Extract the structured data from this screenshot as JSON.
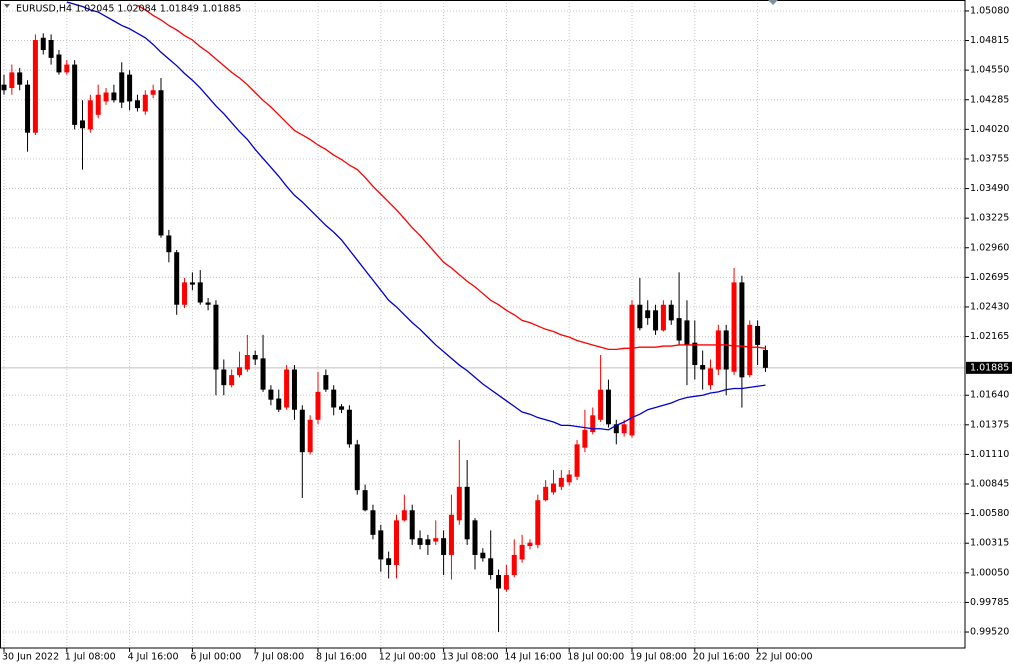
{
  "chart_data": {
    "type": "candlestick",
    "title": "EURUSD,H4  1.02045 1.02084 1.01849 1.01885",
    "categories": [
      "30 Jun 2022",
      null,
      null,
      null,
      null,
      null,
      null,
      null,
      "1 Jul 08:00",
      null,
      null,
      null,
      null,
      null,
      null,
      null,
      "4 Jul 16:00",
      null,
      null,
      null,
      null,
      null,
      null,
      null,
      "6 Jul 00:00",
      null,
      null,
      null,
      null,
      null,
      null,
      null,
      "7 Jul 08:00",
      null,
      null,
      null,
      null,
      null,
      null,
      null,
      "8 Jul 16:00",
      null,
      null,
      null,
      null,
      null,
      null,
      null,
      "12 Jul 00:00",
      null,
      null,
      null,
      null,
      null,
      null,
      null,
      "13 Jul 08:00",
      null,
      null,
      null,
      null,
      null,
      null,
      null,
      "14 Jul 16:00",
      null,
      null,
      null,
      null,
      null,
      null,
      null,
      "18 Jul 00:00",
      null,
      null,
      null,
      null,
      null,
      null,
      null,
      "19 Jul 08:00",
      null,
      null,
      null,
      null,
      null,
      null,
      null,
      "20 Jul 16:00",
      null,
      null,
      null,
      null,
      null,
      null,
      null,
      "22 Jul 00:00",
      null
    ],
    "open": [
      1.0442,
      1.0439,
      1.0453,
      1.0442,
      1.0399,
      1.0484,
      1.0482,
      1.0469,
      1.0453,
      1.046,
      1.041,
      1.0402,
      1.0415,
      1.0427,
      1.0435,
      1.0453,
      1.0451,
      1.0428,
      1.0418,
      1.0433,
      1.0437,
      1.0307,
      1.0292,
      1.0245,
      1.0265,
      1.0265,
      1.0247,
      1.0245,
      1.0187,
      1.0173,
      1.0182,
      1.0187,
      1.02,
      1.0197,
      1.0169,
      1.0161,
      1.0153,
      1.0187,
      1.0151,
      1.0113,
      1.0142,
      1.0182,
      1.0169,
      1.0154,
      1.0151,
      1.012,
      1.0079,
      1.0061,
      1.0043,
      1.0018,
      1.0012,
      1.0052,
      1.0061,
      1.0036,
      1.0035,
      1.0033,
      1.0036,
      1.0021,
      1.0052,
      1.0082,
      1.0052,
      1.0023,
      1.0018,
      1.0003,
      0.999,
      1.0003,
      1.0017,
      1.0029,
      1.003,
      1.007,
      1.0077,
      1.0082,
      1.0086,
      1.0091,
      1.0117,
      1.0131,
      1.0142,
      1.0169,
      1.0138,
      1.013,
      1.0128,
      1.0245,
      1.024,
      1.024,
      1.0222,
      1.0245,
      1.0233,
      1.0231,
      1.0211,
      1.0191,
      1.0173,
      1.0187,
      1.0222,
      1.0185,
      1.0265,
      1.0182,
      1.0226,
      1.02045
    ],
    "high": [
      1.0451,
      1.046,
      1.0457,
      1.0446,
      1.0487,
      1.0488,
      1.0487,
      1.0473,
      1.0464,
      1.0464,
      1.0428,
      1.0433,
      1.0442,
      1.0439,
      1.0442,
      1.0462,
      1.0455,
      1.0433,
      1.0437,
      1.0442,
      1.0448,
      1.0312,
      1.0294,
      1.0269,
      1.0274,
      1.0276,
      1.0251,
      1.0249,
      1.0196,
      1.0187,
      1.0203,
      1.0218,
      1.0204,
      1.0218,
      1.0173,
      1.0169,
      1.0191,
      1.0191,
      1.0155,
      1.0146,
      1.0185,
      1.0187,
      1.0173,
      1.0156,
      1.0155,
      1.0124,
      1.0084,
      1.0066,
      1.0048,
      1.0024,
      1.0057,
      1.0075,
      1.0066,
      1.0043,
      1.0039,
      1.0052,
      1.0043,
      1.0075,
      1.0124,
      1.0106,
      1.0054,
      1.0027,
      1.0043,
      1.0008,
      1.0012,
      1.0035,
      1.0039,
      1.0035,
      1.0075,
      1.0088,
      1.0097,
      1.0097,
      1.0097,
      1.0124,
      1.0151,
      1.0153,
      1.02,
      1.0178,
      1.0142,
      1.0142,
      1.0249,
      1.0269,
      1.0249,
      1.0245,
      1.0249,
      1.0249,
      1.0274,
      1.0249,
      1.0231,
      1.0204,
      1.0196,
      1.0227,
      1.0227,
      1.0278,
      1.0271,
      1.0231,
      1.0231,
      1.02084
    ],
    "low": [
      1.0433,
      1.0433,
      1.0437,
      1.0382,
      1.0397,
      1.0469,
      1.046,
      1.0451,
      1.0451,
      1.0402,
      1.0366,
      1.0399,
      1.0412,
      1.0424,
      1.0426,
      1.0421,
      1.0419,
      1.0418,
      1.0415,
      1.043,
      1.0305,
      1.0283,
      1.0236,
      1.0242,
      1.0258,
      1.0245,
      1.024,
      1.0164,
      1.0164,
      1.0171,
      1.018,
      1.0185,
      1.0191,
      1.0167,
      1.0155,
      1.0149,
      1.0151,
      1.0142,
      1.0072,
      1.0111,
      1.0138,
      1.0167,
      1.0146,
      1.0148,
      1.0117,
      1.0075,
      1.006,
      1.0035,
      1.0006,
      1.0,
      1.0,
      1.0051,
      1.003,
      1.0026,
      1.0021,
      1.003,
      1.0003,
      0.9999,
      1.0048,
      1.003,
      1.0008,
      1.0015,
      0.9999,
      0.9952,
      0.9988,
      1.0001,
      1.0014,
      1.0026,
      1.0027,
      1.0069,
      1.0075,
      1.0079,
      1.0083,
      1.0088,
      1.0113,
      1.0129,
      1.014,
      1.0135,
      1.012,
      1.0127,
      1.0126,
      1.0222,
      1.0227,
      1.0218,
      1.0221,
      1.0227,
      1.0209,
      1.0173,
      1.0178,
      1.0169,
      1.0169,
      1.0182,
      1.0164,
      1.0182,
      1.0153,
      1.018,
      1.0191,
      1.01849
    ],
    "close": [
      1.0437,
      1.0453,
      1.0442,
      1.0399,
      1.0482,
      1.0473,
      1.0466,
      1.0453,
      1.046,
      1.0406,
      1.0403,
      1.0428,
      1.0433,
      1.0435,
      1.0428,
      1.0426,
      1.0427,
      1.0421,
      1.0433,
      1.0437,
      1.0307,
      1.0292,
      1.0245,
      1.0265,
      1.0263,
      1.0247,
      1.0245,
      1.0187,
      1.0173,
      1.0182,
      1.0189,
      1.02,
      1.0196,
      1.0169,
      1.016,
      1.0151,
      1.0187,
      1.0151,
      1.0113,
      1.0142,
      1.0167,
      1.0169,
      1.0153,
      1.0151,
      1.012,
      1.0079,
      1.0061,
      1.0039,
      1.0017,
      1.0012,
      1.0052,
      1.0061,
      1.0035,
      1.003,
      1.003,
      1.0036,
      1.0021,
      1.0057,
      1.0082,
      1.0035,
      1.0021,
      1.0018,
      1.0003,
      0.9991,
      1.0003,
      1.0021,
      1.003,
      1.0032,
      1.007,
      1.0082,
      1.0085,
      1.009,
      1.0093,
      1.012,
      1.0133,
      1.0146,
      1.0169,
      1.0138,
      1.013,
      1.0138,
      1.0245,
      1.0224,
      1.0233,
      1.0222,
      1.0245,
      1.0231,
      1.0213,
      1.0209,
      1.0191,
      1.0187,
      1.0188,
      1.0222,
      1.0187,
      1.0265,
      1.018,
      1.0227,
      1.0209,
      1.01885
    ],
    "up_color": "#ff0000",
    "down_color": "#000000",
    "indicators": [
      {
        "color": "#ff0000",
        "values": [
          null,
          null,
          null,
          null,
          null,
          null,
          null,
          null,
          null,
          null,
          null,
          null,
          null,
          null,
          null,
          null,
          null,
          1.0513,
          1.0509,
          1.0504,
          1.05,
          1.0495,
          1.0491,
          1.0486,
          1.0482,
          1.0476,
          1.0471,
          1.0465,
          1.0459,
          1.0453,
          1.0448,
          1.0442,
          1.0435,
          1.0428,
          1.0422,
          1.0415,
          1.0408,
          1.0401,
          1.0397,
          1.0393,
          1.0388,
          1.0384,
          1.0379,
          1.0375,
          1.037,
          1.0366,
          1.0359,
          1.0351,
          1.0344,
          1.0337,
          1.033,
          1.0322,
          1.0314,
          1.0307,
          1.0299,
          1.0291,
          1.0283,
          1.0278,
          1.0272,
          1.0266,
          1.0261,
          1.0255,
          1.0249,
          1.0245,
          1.024,
          1.0236,
          1.0231,
          1.0229,
          1.0226,
          1.0223,
          1.0221,
          1.0218,
          1.0216,
          1.0213,
          1.0211,
          1.0209,
          1.0207,
          1.0205,
          1.0205,
          1.0206,
          1.0206,
          1.0207,
          1.0207,
          1.0207,
          1.0208,
          1.0208,
          1.0209,
          1.0209,
          1.0209,
          1.0209,
          1.0209,
          1.0209,
          1.0209,
          1.0208,
          1.0208,
          1.0207,
          1.0207,
          1.0206
        ]
      },
      {
        "color": "#0000cd",
        "values": [
          null,
          null,
          null,
          null,
          null,
          null,
          null,
          null,
          1.0516,
          1.0514,
          1.0512,
          1.0509,
          1.0507,
          1.0503,
          1.0499,
          1.0495,
          1.0492,
          1.0488,
          1.0484,
          1.0478,
          1.0471,
          1.0465,
          1.0459,
          1.0452,
          1.0446,
          1.0439,
          1.0431,
          1.0423,
          1.0416,
          1.0408,
          1.04,
          1.0393,
          1.0384,
          1.0376,
          1.0368,
          1.036,
          1.0351,
          1.0343,
          1.0337,
          1.033,
          1.0323,
          1.0316,
          1.031,
          1.0303,
          1.0294,
          1.0285,
          1.0276,
          1.0267,
          1.0258,
          1.0249,
          1.0243,
          1.0236,
          1.0229,
          1.0223,
          1.0216,
          1.0209,
          1.0203,
          1.0197,
          1.0191,
          1.0186,
          1.018,
          1.0174,
          1.0169,
          1.0164,
          1.0159,
          1.0154,
          1.0149,
          1.0147,
          1.0144,
          1.0142,
          1.014,
          1.0137,
          1.0137,
          1.0136,
          1.0135,
          1.0134,
          1.0134,
          1.0133,
          1.0137,
          1.014,
          1.0144,
          1.0147,
          1.0151,
          1.0153,
          1.0155,
          1.0157,
          1.016,
          1.0162,
          1.0163,
          1.0164,
          1.0166,
          1.0167,
          1.0169,
          1.017,
          1.017,
          1.0171,
          1.0172,
          1.0173
        ]
      }
    ],
    "current_price": 1.01885,
    "ylim": [
      0.99377,
      1.05178
    ],
    "yticks": [
      {
        "value": 1.0508,
        "label": "1.05080"
      },
      1.04815,
      {
        "value": 1.0455,
        "label": "1.04550"
      },
      1.04285,
      {
        "value": 1.0402,
        "label": "1.04020"
      },
      1.03755,
      {
        "value": 1.0349,
        "label": "1.03490"
      },
      1.03225,
      {
        "value": 1.0296,
        "label": "1.02960"
      },
      1.02695,
      {
        "value": 1.0243,
        "label": "1.02430"
      },
      1.02165,
      {
        "value": 1.0164,
        "label": "1.01640"
      },
      1.01375,
      {
        "value": 1.0111,
        "label": "1.01110"
      },
      1.00845,
      {
        "value": 1.0058,
        "label": "1.00580"
      },
      1.00315,
      {
        "value": 1.0005,
        "label": "1.00050"
      },
      0.99785,
      {
        "value": 0.9952,
        "label": "0.99520"
      }
    ],
    "grid": true
  }
}
